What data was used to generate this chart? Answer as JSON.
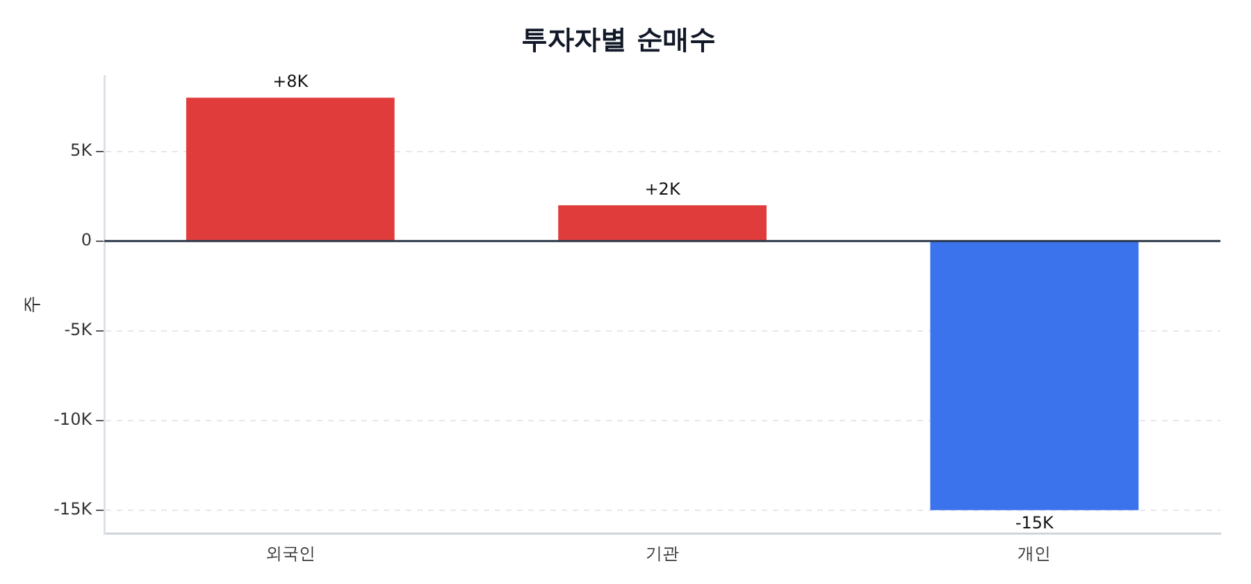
{
  "chart_data": {
    "type": "bar",
    "title": "투자자별 순매수",
    "ylabel": "주",
    "categories": [
      "외국인",
      "기관",
      "개인"
    ],
    "values": [
      8000,
      2000,
      -15000
    ],
    "colors": [
      "#e03c3c",
      "#e03c3c",
      "#3b73ec"
    ],
    "value_labels": [
      "+8K",
      "+2K",
      "-15K"
    ],
    "ylim": [
      -16300,
      9200
    ],
    "yticks": [
      {
        "value": -15000,
        "label": "-15K"
      },
      {
        "value": -10000,
        "label": "-10K"
      },
      {
        "value": -5000,
        "label": "-5K"
      },
      0,
      {
        "value": 5000,
        "label": "5K"
      }
    ],
    "ref_lines": [
      {
        "axis": "y",
        "value": 0,
        "color": "#2d3748"
      }
    ],
    "grid": "y",
    "legend": false
  }
}
